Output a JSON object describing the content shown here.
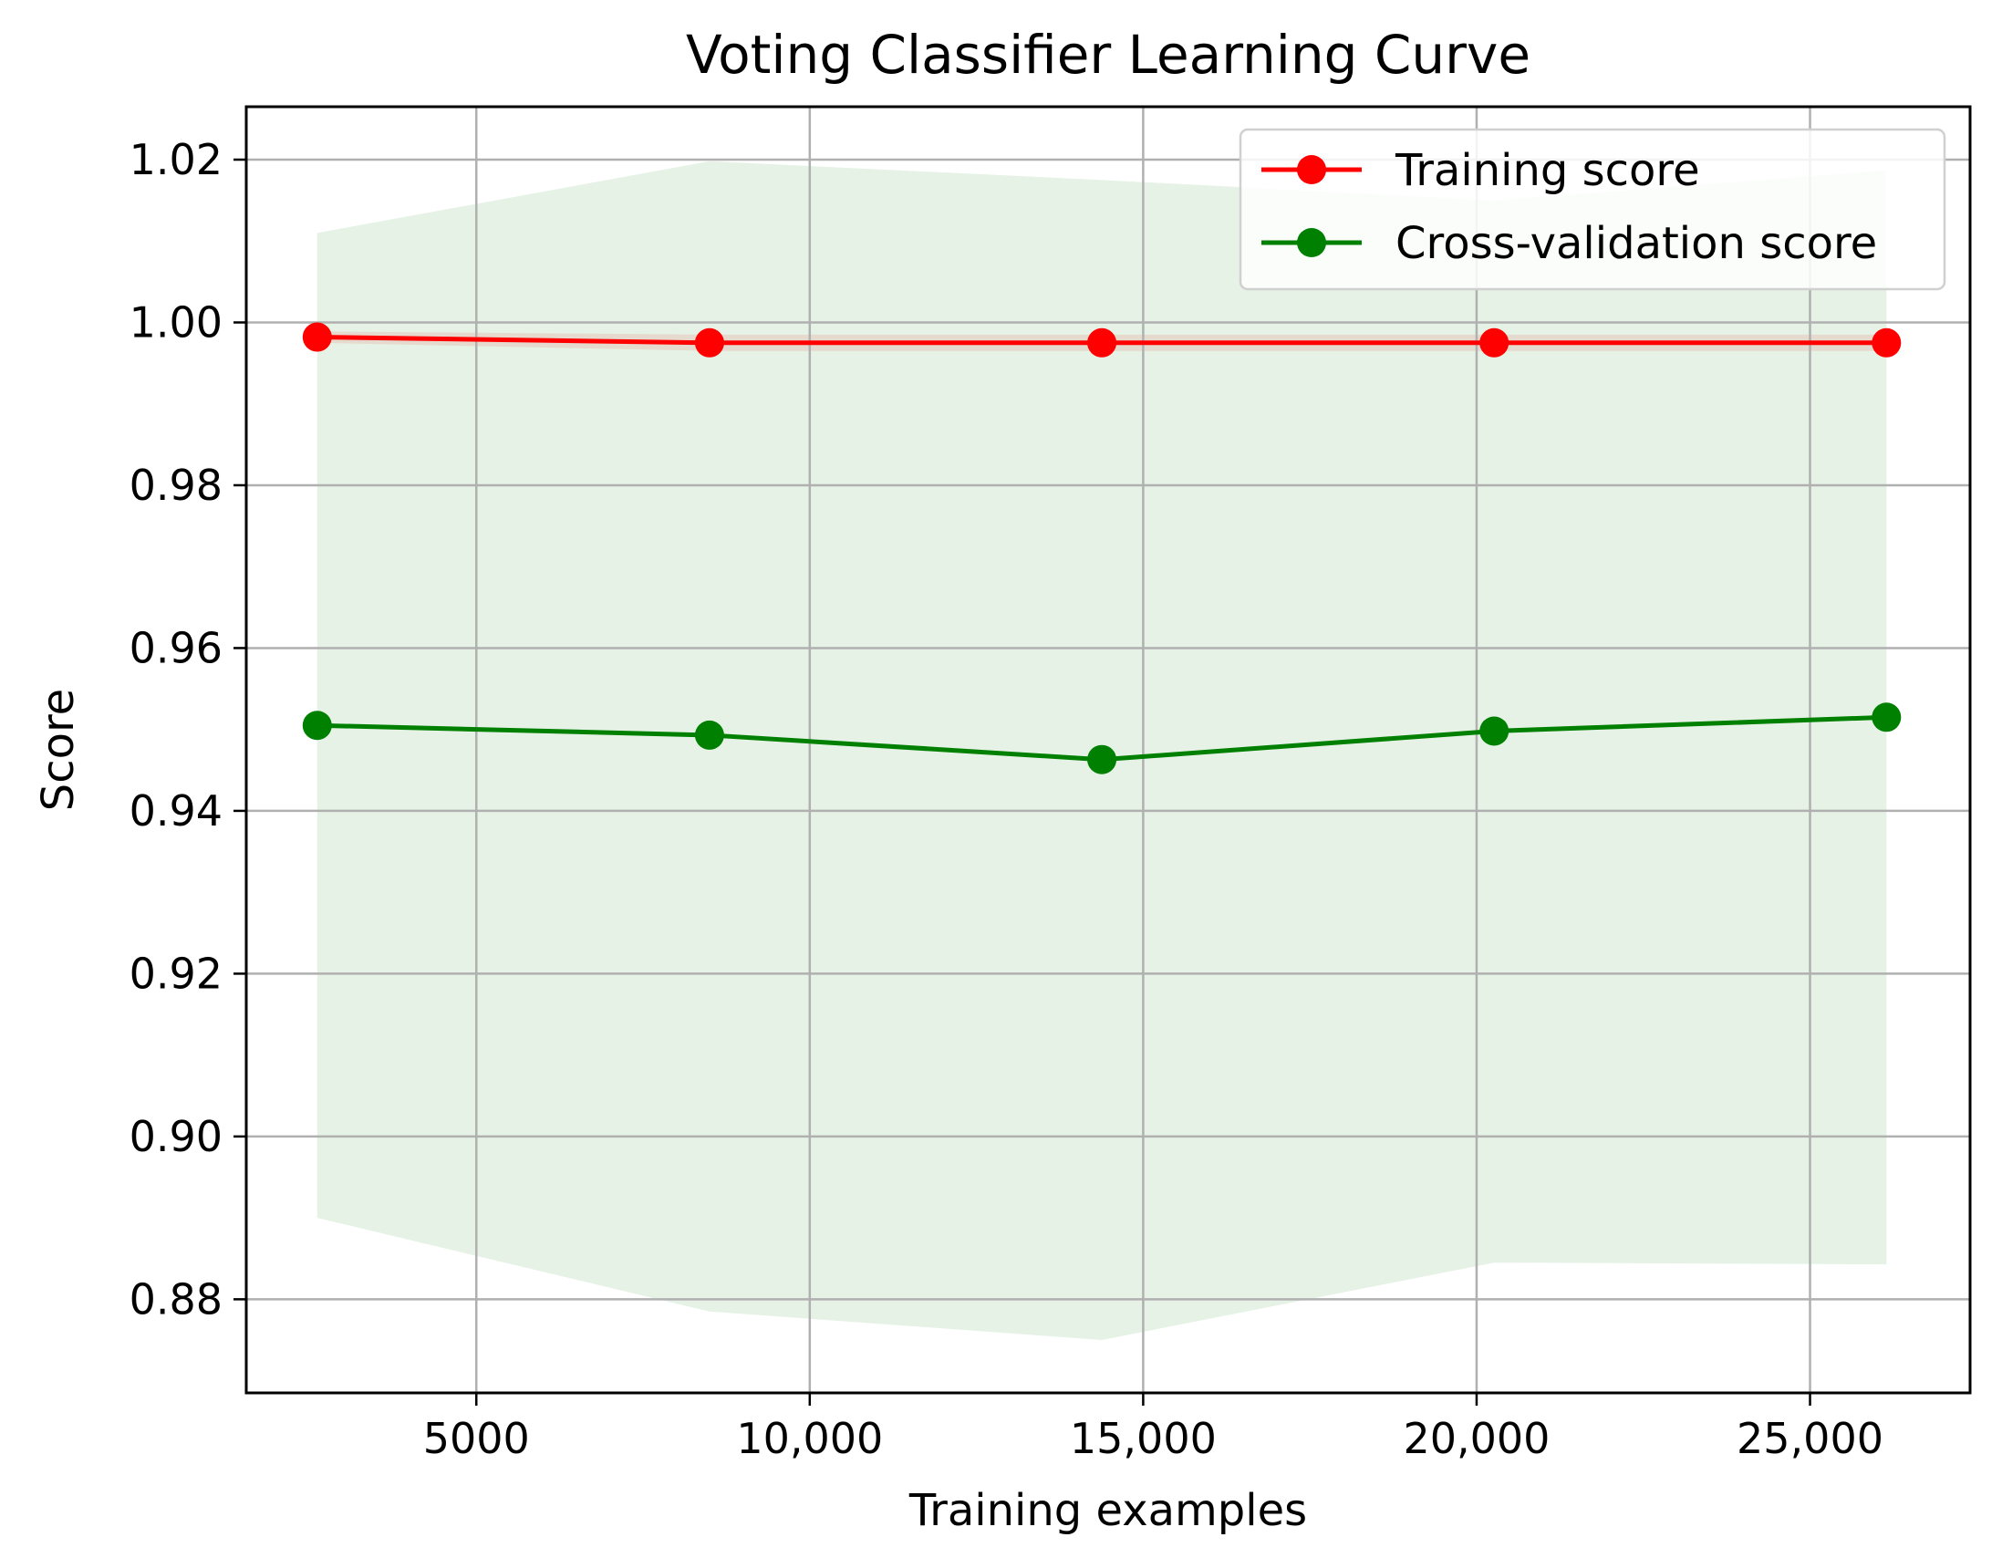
{
  "chart_data": {
    "type": "line",
    "title": "Voting Classifier Learning Curve",
    "xlabel": "Training examples",
    "ylabel": "Score",
    "xlim": [
      1550,
      27400
    ],
    "ylim": [
      0.8685,
      1.0265
    ],
    "x": [
      2614,
      8497,
      14380,
      20263,
      26146
    ],
    "x_ticks": [
      5000,
      10000,
      15000,
      20000,
      25000
    ],
    "x_tick_labels": [
      "5000",
      "10,000",
      "15,000",
      "20,000",
      "25,000"
    ],
    "y_ticks": [
      0.88,
      0.9,
      0.92,
      0.94,
      0.96,
      0.98,
      1.0,
      1.02
    ],
    "y_tick_labels": [
      "0.88",
      "0.90",
      "0.92",
      "0.94",
      "0.96",
      "0.98",
      "1.00",
      "1.02"
    ],
    "grid": true,
    "legend_position": "top-right",
    "series": [
      {
        "name": "Training score",
        "color": "#ff0000",
        "values": [
          0.9982,
          0.9975,
          0.9975,
          0.9975,
          0.9975
        ],
        "band_lower": [
          0.9975,
          0.9965,
          0.9965,
          0.9965,
          0.9965
        ],
        "band_upper": [
          0.9989,
          0.9985,
          0.9985,
          0.9985,
          0.9985
        ],
        "band_color": "#ff0000"
      },
      {
        "name": "Cross-validation score",
        "color": "#008000",
        "values": [
          0.9505,
          0.9493,
          0.9463,
          0.9498,
          0.9515
        ],
        "band_lower": [
          0.89,
          0.8785,
          0.875,
          0.8845,
          0.8843
        ],
        "band_upper": [
          1.011,
          1.0198,
          1.0175,
          1.015,
          1.0187
        ],
        "band_color": "#008000"
      }
    ]
  }
}
